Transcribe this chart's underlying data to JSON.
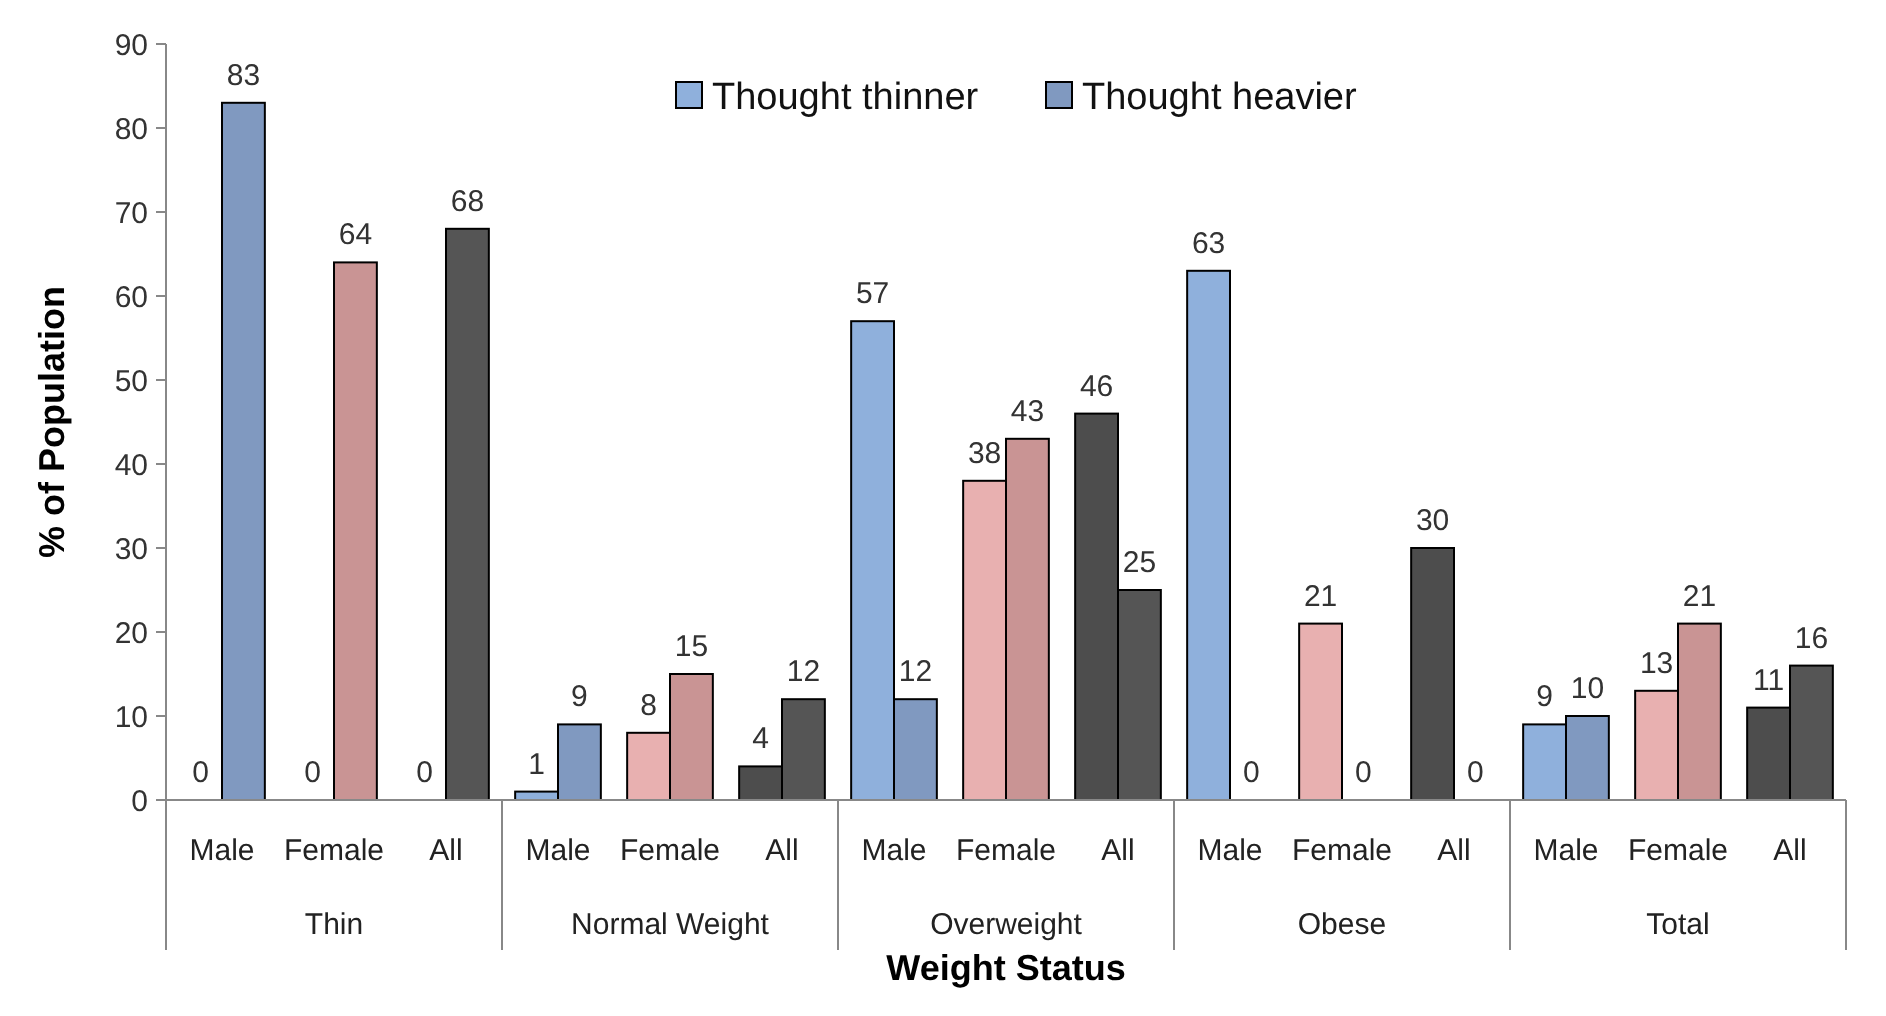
{
  "chart_data": {
    "type": "bar",
    "xlabel": "Weight Status",
    "ylabel": "% of Population",
    "categories": [
      "Male",
      "Female",
      "All",
      "Male",
      "Female",
      "All",
      "Male",
      "Female",
      "All",
      "Male",
      "Female",
      "All",
      "Male",
      "Female",
      "All"
    ],
    "annotations": [
      "Thin",
      "Normal Weight",
      "Overweight",
      "Obese",
      "Total"
    ],
    "series": [
      {
        "name": "Thought thinner",
        "colors": [
          "#8fb0dc",
          "#e8b0b0",
          "#4d4d4d",
          "#8fb0dc",
          "#e8b0b0",
          "#4d4d4d",
          "#8fb0dc",
          "#e8b0b0",
          "#4d4d4d",
          "#8fb0dc",
          "#e8b0b0",
          "#4d4d4d",
          "#8fb0dc",
          "#e8b0b0",
          "#4d4d4d"
        ],
        "values": [
          0,
          0,
          0,
          1,
          8,
          4,
          57,
          38,
          46,
          63,
          21,
          30,
          9,
          13,
          11
        ]
      },
      {
        "name": "Thought heavier",
        "colors": [
          "#8099c0",
          "#c99494",
          "#555555",
          "#8099c0",
          "#c99494",
          "#555555",
          "#8099c0",
          "#c99494",
          "#555555",
          "#8099c0",
          "#c99494",
          "#555555",
          "#8099c0",
          "#c99494",
          "#555555"
        ],
        "values": [
          83,
          64,
          68,
          9,
          15,
          12,
          12,
          43,
          25,
          0,
          0,
          0,
          10,
          21,
          16
        ]
      }
    ],
    "ylim": [
      0,
      90
    ],
    "yticks": [
      0,
      10,
      20,
      30,
      40,
      50,
      60,
      70,
      80,
      90
    ],
    "data_labels": true,
    "legend": "top",
    "grid": false
  }
}
